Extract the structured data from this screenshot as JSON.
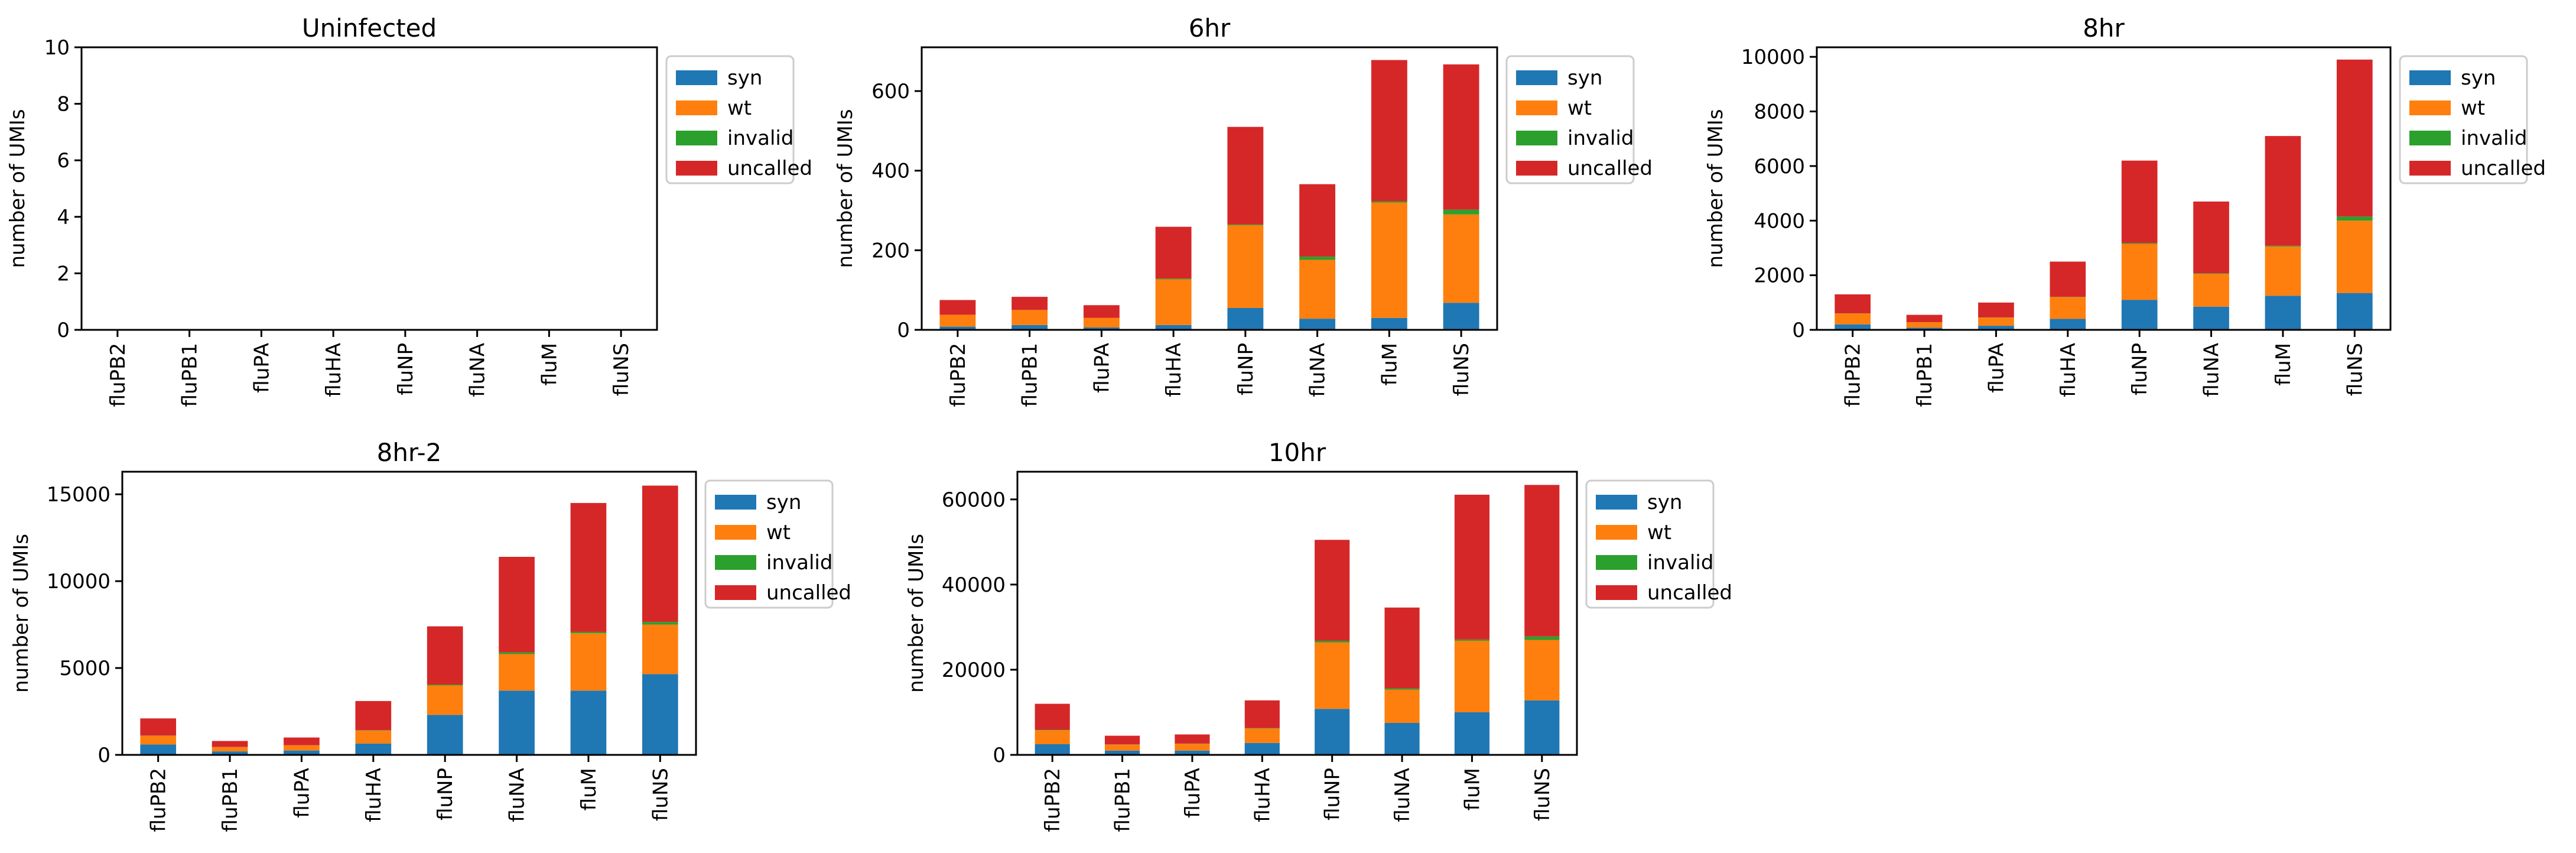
{
  "chart_data": [
    {
      "type": "bar",
      "stacked": true,
      "title": "Uninfected",
      "ylabel": "number of UMIs",
      "xlabel": "",
      "ylim": [
        0,
        10
      ],
      "yticks": [
        "0",
        "2",
        "4",
        "6",
        "8",
        "10"
      ],
      "categories": [
        "fluPB2",
        "fluPB1",
        "fluPA",
        "fluHA",
        "fluNP",
        "fluNA",
        "fluM",
        "fluNS"
      ],
      "series": [
        {
          "name": "syn",
          "color": "#1f77b4",
          "values": [
            0,
            0,
            0,
            0,
            0,
            0,
            0,
            0
          ]
        },
        {
          "name": "wt",
          "color": "#ff7f0e",
          "values": [
            0,
            0,
            0,
            0,
            0,
            0,
            0,
            0
          ]
        },
        {
          "name": "invalid",
          "color": "#2ca02c",
          "values": [
            0,
            0,
            0,
            0,
            0,
            0,
            0,
            0
          ]
        },
        {
          "name": "uncalled",
          "color": "#d62728",
          "values": [
            0,
            0,
            0,
            0,
            0,
            0,
            0,
            0
          ]
        }
      ],
      "legend": "outside-right"
    },
    {
      "type": "bar",
      "stacked": true,
      "title": "6hr",
      "ylabel": "number of UMIs",
      "xlabel": "",
      "ylim": [
        0,
        710
      ],
      "yticks": [
        "0",
        "200",
        "400",
        "600"
      ],
      "categories": [
        "fluPB2",
        "fluPB1",
        "fluPA",
        "fluHA",
        "fluNP",
        "fluNA",
        "fluM",
        "fluNS"
      ],
      "series": [
        {
          "name": "syn",
          "color": "#1f77b4",
          "values": [
            8,
            12,
            6,
            12,
            55,
            28,
            30,
            68
          ]
        },
        {
          "name": "wt",
          "color": "#ff7f0e",
          "values": [
            30,
            38,
            24,
            115,
            208,
            148,
            290,
            222
          ]
        },
        {
          "name": "invalid",
          "color": "#2ca02c",
          "values": [
            0,
            0,
            0,
            2,
            2,
            8,
            3,
            12
          ]
        },
        {
          "name": "uncalled",
          "color": "#d62728",
          "values": [
            37,
            33,
            32,
            130,
            245,
            182,
            355,
            365
          ]
        }
      ],
      "legend": "outside-right"
    },
    {
      "type": "bar",
      "stacked": true,
      "title": "8hr",
      "ylabel": "number of UMIs",
      "xlabel": "",
      "ylim": [
        0,
        10350
      ],
      "yticks": [
        "0",
        "2000",
        "4000",
        "6000",
        "8000",
        "10000"
      ],
      "categories": [
        "fluPB2",
        "fluPB1",
        "fluPA",
        "fluHA",
        "fluNP",
        "fluNA",
        "fluM",
        "fluNS"
      ],
      "series": [
        {
          "name": "syn",
          "color": "#1f77b4",
          "values": [
            200,
            80,
            150,
            400,
            1100,
            850,
            1250,
            1350
          ]
        },
        {
          "name": "wt",
          "color": "#ff7f0e",
          "values": [
            400,
            200,
            300,
            800,
            2050,
            1200,
            1800,
            2650
          ]
        },
        {
          "name": "invalid",
          "color": "#2ca02c",
          "values": [
            5,
            2,
            5,
            10,
            30,
            20,
            30,
            150
          ]
        },
        {
          "name": "uncalled",
          "color": "#d62728",
          "values": [
            695,
            268,
            545,
            1290,
            3020,
            2630,
            4020,
            5750
          ]
        }
      ],
      "legend": "outside-right"
    },
    {
      "type": "bar",
      "stacked": true,
      "title": "8hr-2",
      "ylabel": "number of UMIs",
      "xlabel": "",
      "ylim": [
        0,
        16300
      ],
      "yticks": [
        "0",
        "5000",
        "10000",
        "15000"
      ],
      "categories": [
        "fluPB2",
        "fluPB1",
        "fluPA",
        "fluHA",
        "fluNP",
        "fluNA",
        "fluM",
        "fluNS"
      ],
      "series": [
        {
          "name": "syn",
          "color": "#1f77b4",
          "values": [
            600,
            200,
            250,
            650,
            2300,
            3700,
            3700,
            4650
          ]
        },
        {
          "name": "wt",
          "color": "#ff7f0e",
          "values": [
            500,
            250,
            300,
            750,
            1700,
            2100,
            3300,
            2850
          ]
        },
        {
          "name": "invalid",
          "color": "#2ca02c",
          "values": [
            10,
            5,
            5,
            20,
            50,
            100,
            80,
            150
          ]
        },
        {
          "name": "uncalled",
          "color": "#d62728",
          "values": [
            990,
            345,
            445,
            1680,
            3350,
            5500,
            7420,
            7850
          ]
        }
      ],
      "legend": "outside-right"
    },
    {
      "type": "bar",
      "stacked": true,
      "title": "10hr",
      "ylabel": "number of UMIs",
      "xlabel": "",
      "ylim": [
        0,
        66500
      ],
      "yticks": [
        "0",
        "20000",
        "40000",
        "60000"
      ],
      "categories": [
        "fluPB2",
        "fluPB1",
        "fluPA",
        "fluHA",
        "fluNP",
        "fluNA",
        "fluM",
        "fluNS"
      ],
      "series": [
        {
          "name": "syn",
          "color": "#1f77b4",
          "values": [
            2500,
            1000,
            1000,
            2800,
            10800,
            7500,
            10000,
            12800
          ]
        },
        {
          "name": "wt",
          "color": "#ff7f0e",
          "values": [
            3300,
            1400,
            1600,
            3400,
            15600,
            7800,
            16800,
            14200
          ]
        },
        {
          "name": "invalid",
          "color": "#2ca02c",
          "values": [
            100,
            50,
            50,
            100,
            400,
            300,
            300,
            800
          ]
        },
        {
          "name": "uncalled",
          "color": "#d62728",
          "values": [
            6100,
            2050,
            2150,
            6500,
            23700,
            19000,
            34000,
            35600
          ]
        }
      ],
      "legend": "outside-right"
    }
  ]
}
